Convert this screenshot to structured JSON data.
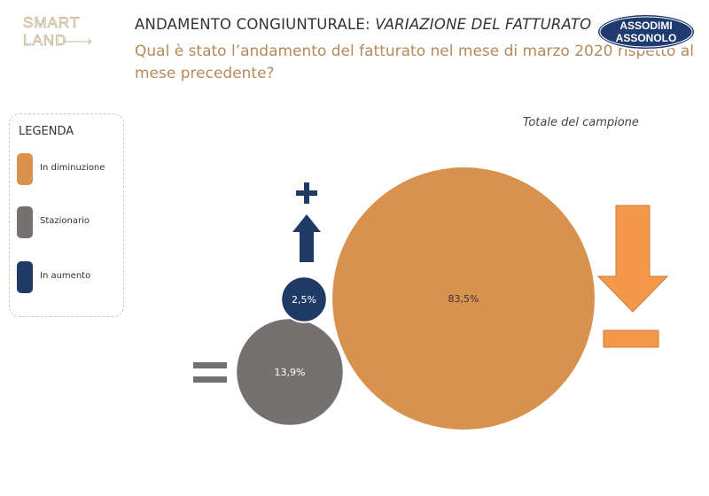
{
  "logo": {
    "line1": "SMART",
    "line2": "LAND"
  },
  "header": {
    "title_plain": "ANDAMENTO CONGIUNTURALE: ",
    "title_italic": "VARIAZIONE DEL FATTURATO",
    "question": "Qual è stato l’andamento del fatturato nel mese di marzo 2020 rispetto al mese precedente?"
  },
  "badge": {
    "line1": "ASSODIMI",
    "line2": "ASSONOLO"
  },
  "legend": {
    "title": "LEGENDA",
    "items": [
      {
        "label": "In diminuzione",
        "color": "#d9924e"
      },
      {
        "label": "Stazionario",
        "color": "#757171"
      },
      {
        "label": "In aumento",
        "color": "#1f3a64"
      }
    ]
  },
  "chart_data": {
    "type": "bubble",
    "title": "Totale del campione",
    "series": [
      {
        "name": "In diminuzione",
        "value": 83.5,
        "label": "83,5%",
        "color": "#d9924e"
      },
      {
        "name": "Stazionario",
        "value": 13.9,
        "label": "13,9%",
        "color": "#757171"
      },
      {
        "name": "In aumento",
        "value": 2.5,
        "label": "2,5%",
        "color": "#1f3a64"
      }
    ]
  },
  "colors": {
    "arrow_down": "#f4994a",
    "plus": "#1f3a64",
    "equals": "#757171"
  }
}
